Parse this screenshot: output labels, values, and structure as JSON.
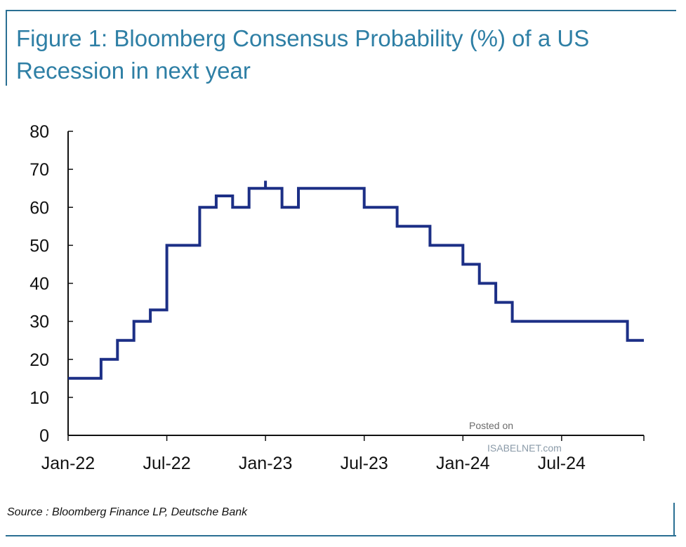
{
  "chart_data": {
    "type": "line",
    "title": "Figure 1: Bloomberg Consensus Probability (%) of a US Recession in next year",
    "xlabel": "",
    "ylabel": "",
    "ylim": [
      0,
      80
    ],
    "yticks": [
      0,
      10,
      20,
      30,
      40,
      50,
      60,
      70,
      80
    ],
    "x_tick_labels": [
      "Jan-22",
      "Jul-22",
      "Jan-23",
      "Jul-23",
      "Jan-24",
      "Jul-24"
    ],
    "x_tick_dates": [
      "2022-01",
      "2022-07",
      "2023-01",
      "2023-07",
      "2024-01",
      "2024-07"
    ],
    "xlim": [
      "2022-01",
      "2024-12"
    ],
    "grid": false,
    "step": true,
    "series": [
      {
        "color": "#1c2f86",
        "points": [
          [
            "2022-01",
            15
          ],
          [
            "2022-03",
            15
          ],
          [
            "2022-03",
            20
          ],
          [
            "2022-04",
            20
          ],
          [
            "2022-04",
            25
          ],
          [
            "2022-05",
            25
          ],
          [
            "2022-05",
            30
          ],
          [
            "2022-06",
            30
          ],
          [
            "2022-06",
            33
          ],
          [
            "2022-07",
            33
          ],
          [
            "2022-07",
            40
          ],
          [
            "2022-07",
            40
          ],
          [
            "2022-07",
            50
          ],
          [
            "2022-09",
            50
          ],
          [
            "2022-09",
            60
          ],
          [
            "2022-10",
            60
          ],
          [
            "2022-10",
            63
          ],
          [
            "2022-11",
            63
          ],
          [
            "2022-11",
            60
          ],
          [
            "2022-12",
            60
          ],
          [
            "2022-12",
            65
          ],
          [
            "2023-01",
            65
          ],
          [
            "2023-01",
            67
          ],
          [
            "2023-01",
            65
          ],
          [
            "2023-02",
            65
          ],
          [
            "2023-02",
            60
          ],
          [
            "2023-03",
            60
          ],
          [
            "2023-03",
            65
          ],
          [
            "2023-07",
            65
          ],
          [
            "2023-07",
            60
          ],
          [
            "2023-09",
            60
          ],
          [
            "2023-09",
            55
          ],
          [
            "2023-11",
            55
          ],
          [
            "2023-11",
            50
          ],
          [
            "2024-01",
            50
          ],
          [
            "2024-01",
            45
          ],
          [
            "2024-02",
            45
          ],
          [
            "2024-02",
            40
          ],
          [
            "2024-03",
            40
          ],
          [
            "2024-03",
            35
          ],
          [
            "2024-04",
            35
          ],
          [
            "2024-04",
            30
          ],
          [
            "2024-11",
            30
          ],
          [
            "2024-11",
            25
          ],
          [
            "2024-12",
            25
          ]
        ]
      }
    ]
  },
  "watermark": {
    "line1": "Posted on",
    "line2": "ISABELNET.com"
  },
  "source": "Source : Bloomberg Finance LP, Deutsche Bank"
}
